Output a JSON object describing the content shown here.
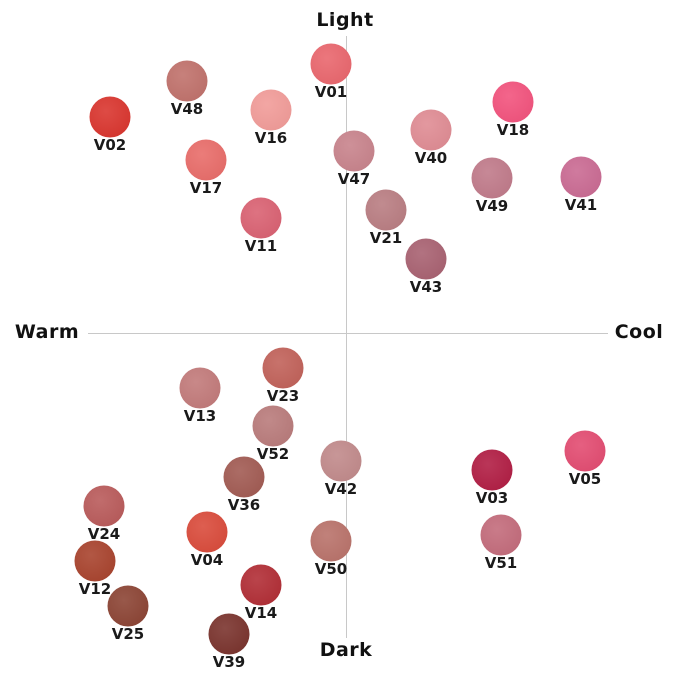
{
  "axes": {
    "top": "Light",
    "bottom": "Dark",
    "left": "Warm",
    "right": "Cool"
  },
  "shades": [
    {
      "id": "V01",
      "color": "#e9646b"
    },
    {
      "id": "V48",
      "color": "#bf6f69"
    },
    {
      "id": "V02",
      "color": "#d9322b"
    },
    {
      "id": "V16",
      "color": "#f19a97"
    },
    {
      "id": "V18",
      "color": "#f2507b"
    },
    {
      "id": "V40",
      "color": "#df8a92"
    },
    {
      "id": "V47",
      "color": "#c7818a"
    },
    {
      "id": "V17",
      "color": "#e86a67"
    },
    {
      "id": "V49",
      "color": "#bf7888"
    },
    {
      "id": "V41",
      "color": "#c96891"
    },
    {
      "id": "V21",
      "color": "#b87b80"
    },
    {
      "id": "V11",
      "color": "#d95f70"
    },
    {
      "id": "V43",
      "color": "#a75f6f"
    },
    {
      "id": "V23",
      "color": "#c05f57"
    },
    {
      "id": "V13",
      "color": "#c17878"
    },
    {
      "id": "V52",
      "color": "#b87979"
    },
    {
      "id": "V42",
      "color": "#c08889"
    },
    {
      "id": "V36",
      "color": "#a05850"
    },
    {
      "id": "V03",
      "color": "#b01a41"
    },
    {
      "id": "V05",
      "color": "#e2496f"
    },
    {
      "id": "V24",
      "color": "#b85858"
    },
    {
      "id": "V04",
      "color": "#d94838"
    },
    {
      "id": "V51",
      "color": "#c26979"
    },
    {
      "id": "V50",
      "color": "#b87068"
    },
    {
      "id": "V12",
      "color": "#a7402a"
    },
    {
      "id": "V14",
      "color": "#b02a32"
    },
    {
      "id": "V25",
      "color": "#8a4131"
    },
    {
      "id": "V39",
      "color": "#78302a"
    }
  ]
}
